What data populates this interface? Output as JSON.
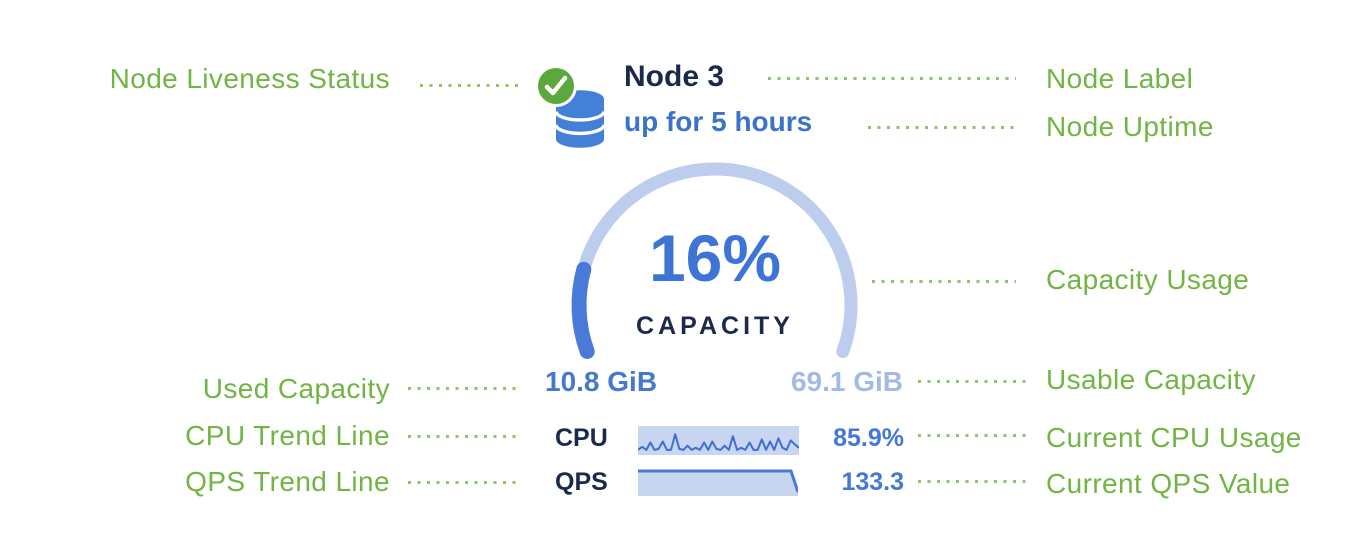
{
  "colors": {
    "green": "#71b544",
    "icon_green": "#5ba83e",
    "navy": "#1b2a4a",
    "uptime_blue": "#3b73c8",
    "pct_blue": "#3e74d6",
    "arc_bg": "#bccdee",
    "arc_fill": "#4a7ad9",
    "used_blue": "#4579d0",
    "usable_blue": "#a3bae4",
    "value_blue": "#4478d4",
    "db_blue": "#4480d8",
    "spark_bg": "#c9d6f1",
    "spark_line": "#3f6fd2"
  },
  "node_card": {
    "liveness_icon": "check-circle-icon",
    "node_icon": "database-icon",
    "label": "Node 3",
    "uptime": "up for 5 hours",
    "capacity": {
      "percent_text": "16%",
      "fraction": 0.16,
      "title": "CAPACITY",
      "used": "10.8 GiB",
      "usable": "69.1 GiB"
    },
    "cpu": {
      "label": "CPU",
      "value": "85.9%",
      "sparkline": [
        0.1,
        0.25,
        0.1,
        0.45,
        0.1,
        0.15,
        0.5,
        0.1,
        0.1,
        0.85,
        0.15,
        0.1,
        0.3,
        0.1,
        0.2,
        0.1,
        0.45,
        0.1,
        0.5,
        0.15,
        0.1,
        0.3,
        0.1,
        0.75,
        0.1,
        0.2,
        0.1,
        0.45,
        0.1,
        0.1,
        0.6,
        0.1,
        0.5,
        0.1,
        0.65,
        0.2,
        0.1,
        0.55,
        0.35,
        0.2
      ]
    },
    "qps": {
      "label": "QPS",
      "value": "133.3",
      "trend": [
        1,
        1,
        1,
        1,
        1,
        1,
        1,
        1,
        1,
        1,
        1,
        1,
        1,
        1,
        1,
        1,
        1,
        1,
        1,
        1,
        1,
        1,
        1,
        0.08
      ]
    }
  },
  "annotations": {
    "left": [
      "Node Liveness Status",
      "Used Capacity",
      "CPU Trend Line",
      "QPS Trend Line"
    ],
    "right": [
      "Node Label",
      "Node Uptime",
      "Capacity Usage",
      "Usable Capacity",
      "Current CPU Usage",
      "Current QPS Value"
    ]
  }
}
